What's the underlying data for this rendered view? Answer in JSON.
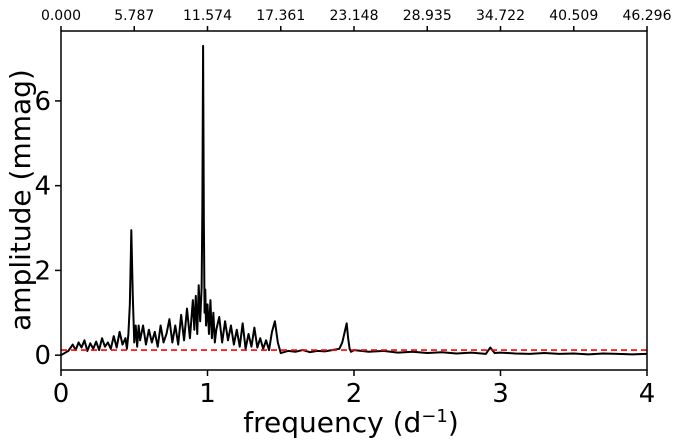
{
  "chart_data": {
    "type": "line",
    "xlabel": "frequency (d",
    "xlabel_sup": "−1",
    "xlabel_close": ")",
    "ylabel": "amplitude (mmag)",
    "xlim": [
      0,
      4
    ],
    "ylim": [
      -0.35,
      7.65
    ],
    "x_ticks": [
      "0",
      "1",
      "2",
      "3",
      "4"
    ],
    "y_ticks": [
      "0",
      "2",
      "4",
      "6"
    ],
    "top_ticks": [
      "0.000",
      "5.787",
      "11.574",
      "17.361",
      "23.148",
      "28.935",
      "34.722",
      "40.509",
      "46.296"
    ],
    "grid": false,
    "series": [
      {
        "color": "#000000",
        "style": "solid",
        "x": [
          0.0,
          0.05,
          0.08,
          0.1,
          0.12,
          0.14,
          0.16,
          0.18,
          0.2,
          0.22,
          0.24,
          0.26,
          0.28,
          0.3,
          0.32,
          0.34,
          0.36,
          0.38,
          0.4,
          0.42,
          0.44,
          0.45,
          0.46,
          0.47,
          0.48,
          0.49,
          0.5,
          0.51,
          0.52,
          0.53,
          0.54,
          0.56,
          0.58,
          0.6,
          0.62,
          0.64,
          0.66,
          0.68,
          0.7,
          0.72,
          0.74,
          0.76,
          0.78,
          0.8,
          0.82,
          0.84,
          0.86,
          0.88,
          0.9,
          0.91,
          0.92,
          0.93,
          0.94,
          0.95,
          0.96,
          0.965,
          0.97,
          0.975,
          0.98,
          0.985,
          0.99,
          1.0,
          1.01,
          1.02,
          1.03,
          1.04,
          1.05,
          1.06,
          1.08,
          1.1,
          1.12,
          1.14,
          1.16,
          1.18,
          1.2,
          1.22,
          1.24,
          1.26,
          1.28,
          1.3,
          1.32,
          1.34,
          1.36,
          1.38,
          1.4,
          1.42,
          1.44,
          1.46,
          1.48,
          1.5,
          1.55,
          1.6,
          1.65,
          1.7,
          1.75,
          1.8,
          1.85,
          1.9,
          1.92,
          1.94,
          1.95,
          1.96,
          1.97,
          1.98,
          2.0,
          2.05,
          2.1,
          2.2,
          2.3,
          2.4,
          2.5,
          2.6,
          2.7,
          2.8,
          2.9,
          2.93,
          2.96,
          3.0,
          3.1,
          3.2,
          3.3,
          3.4,
          3.5,
          3.6,
          3.7,
          3.8,
          3.9,
          4.0
        ],
        "y": [
          0.0,
          0.1,
          0.25,
          0.12,
          0.3,
          0.18,
          0.35,
          0.1,
          0.28,
          0.15,
          0.32,
          0.12,
          0.4,
          0.2,
          0.3,
          0.15,
          0.45,
          0.18,
          0.55,
          0.25,
          0.4,
          0.15,
          0.5,
          1.2,
          2.95,
          1.4,
          0.3,
          0.7,
          0.2,
          0.7,
          0.35,
          0.7,
          0.25,
          0.6,
          0.3,
          0.55,
          0.2,
          0.7,
          0.3,
          0.5,
          0.85,
          0.3,
          0.7,
          0.25,
          0.95,
          0.35,
          1.1,
          0.4,
          1.3,
          0.6,
          1.4,
          0.5,
          1.65,
          0.8,
          1.6,
          3.5,
          7.3,
          3.2,
          1.0,
          1.55,
          0.7,
          1.2,
          0.5,
          1.3,
          0.4,
          1.0,
          0.3,
          0.6,
          0.9,
          0.3,
          0.8,
          0.35,
          0.7,
          0.25,
          0.6,
          0.2,
          0.75,
          0.15,
          0.5,
          0.2,
          0.65,
          0.18,
          0.4,
          0.15,
          0.35,
          0.12,
          0.55,
          0.8,
          0.3,
          0.05,
          0.1,
          0.08,
          0.12,
          0.07,
          0.1,
          0.09,
          0.12,
          0.15,
          0.3,
          0.6,
          0.75,
          0.4,
          0.15,
          0.08,
          0.12,
          0.1,
          0.08,
          0.1,
          0.06,
          0.08,
          0.05,
          0.07,
          0.04,
          0.06,
          0.03,
          0.18,
          0.05,
          0.06,
          0.04,
          0.03,
          0.05,
          0.03,
          0.04,
          0.02,
          0.04,
          0.03,
          0.02,
          0.03
        ]
      },
      {
        "color": "#ff0000",
        "style": "dashed",
        "x": [
          0,
          0.5,
          1,
          1.5,
          2,
          2.5,
          3,
          3.5,
          4
        ],
        "y": [
          0.12,
          0.12,
          0.12,
          0.12,
          0.12,
          0.12,
          0.12,
          0.12,
          0.12
        ]
      }
    ]
  }
}
